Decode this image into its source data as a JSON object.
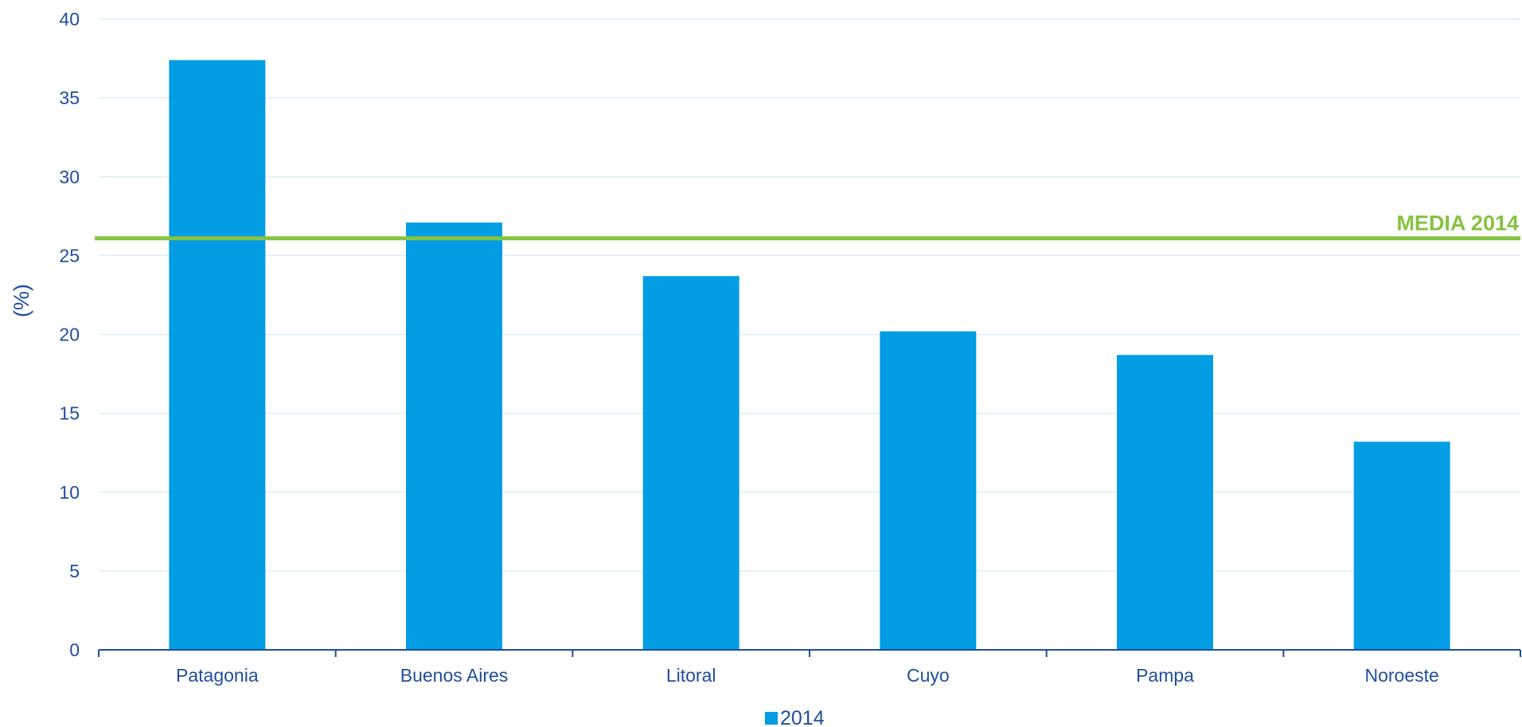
{
  "chart_data": {
    "type": "bar",
    "categories": [
      "Patagonia",
      "Buenos Aires",
      "Litoral",
      "Cuyo",
      "Pampa",
      "Noroeste"
    ],
    "series": [
      {
        "name": "2014",
        "values": [
          37.4,
          27.1,
          23.7,
          20.2,
          18.7,
          13.2
        ]
      }
    ],
    "xlabel": "",
    "ylabel": "(%)",
    "ylim": [
      0,
      40
    ],
    "yticks": [
      "0",
      "5",
      "10",
      "15",
      "20",
      "25",
      "30",
      "35",
      "40"
    ],
    "grid": true,
    "legend": "bottom",
    "reference_line": {
      "label": "MEDIA 2014",
      "value": 26.1
    },
    "colors": {
      "bar": "#039de3",
      "reference": "#84c341",
      "axis": "#1f4e9c",
      "text": "#1f4e9c",
      "grid": "#d6ecf3"
    }
  }
}
